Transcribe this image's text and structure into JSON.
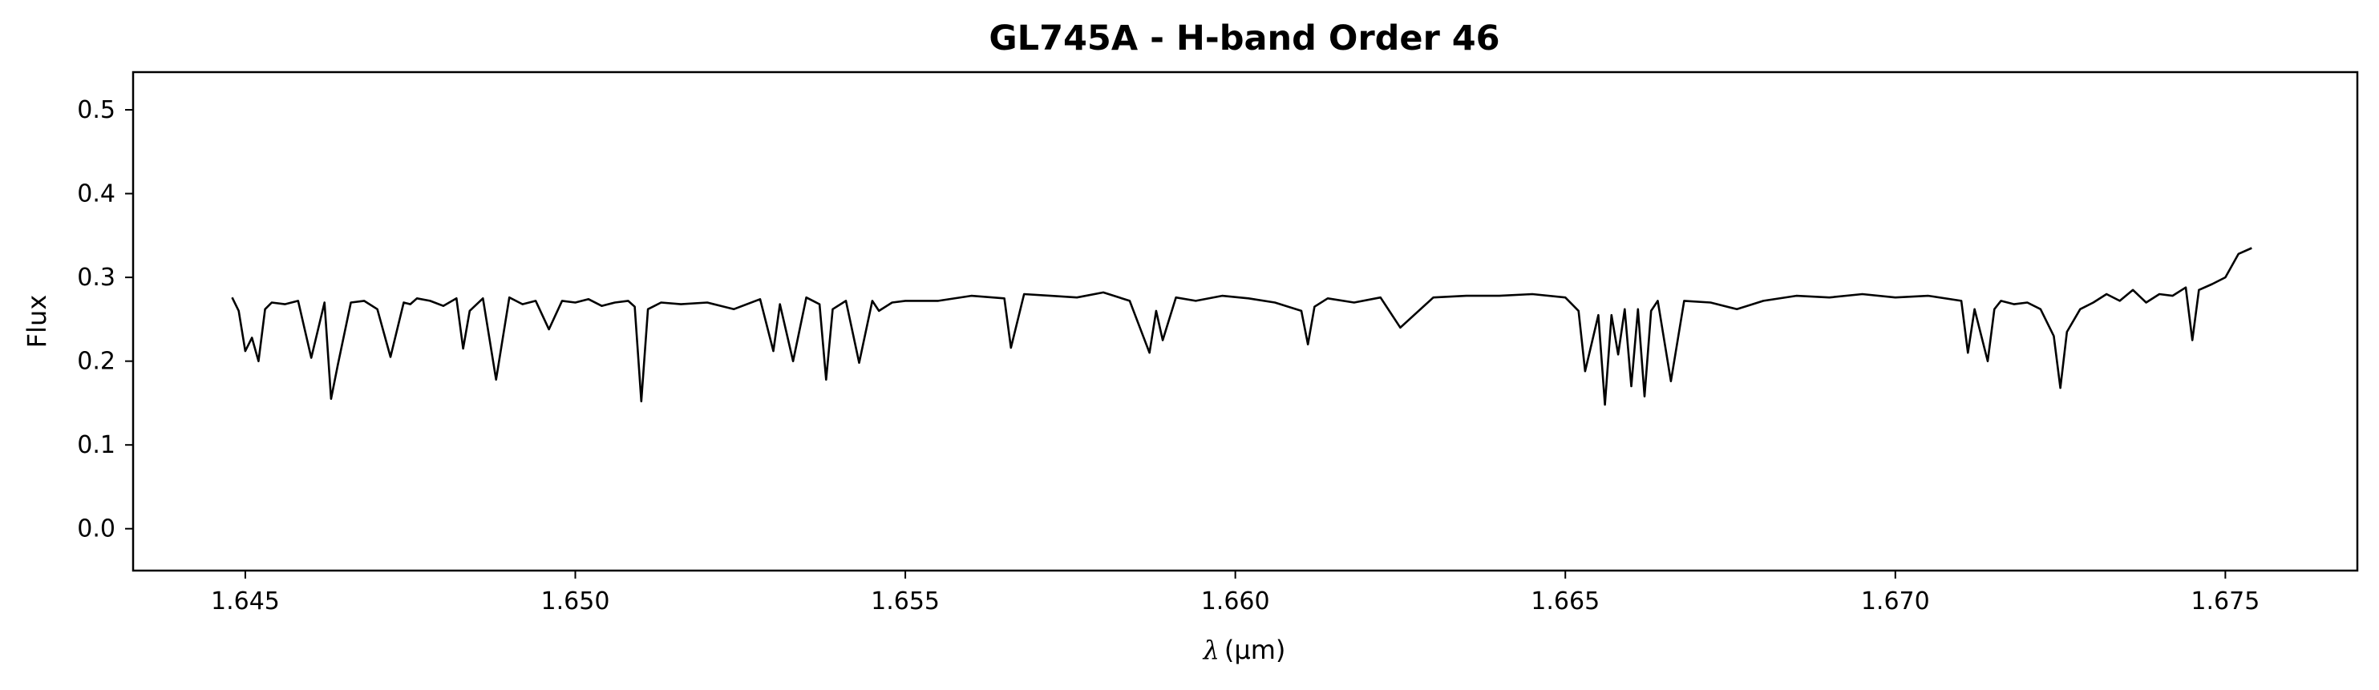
{
  "chart_data": {
    "type": "line",
    "title": "GL745A - H-band Order 46",
    "xlabel_symbol": "λ",
    "xlabel_unit": "(μm)",
    "ylabel": "Flux",
    "xlim": [
      1.6433,
      1.677
    ],
    "ylim": [
      -0.05,
      0.545
    ],
    "xticks": [
      1.645,
      1.65,
      1.655,
      1.66,
      1.665,
      1.67,
      1.675
    ],
    "xtick_labels": [
      "1.645",
      "1.650",
      "1.655",
      "1.660",
      "1.665",
      "1.670",
      "1.675"
    ],
    "yticks": [
      0.0,
      0.1,
      0.2,
      0.3,
      0.4,
      0.5
    ],
    "ytick_labels": [
      "0.0",
      "0.1",
      "0.2",
      "0.3",
      "0.4",
      "0.5"
    ],
    "grid": false,
    "line_color": "#000000",
    "series": [
      {
        "x": [
          1.6448,
          1.6449,
          1.645,
          1.6451,
          1.6452,
          1.6453,
          1.6454,
          1.6456,
          1.6458,
          1.646,
          1.6462,
          1.6463,
          1.6464,
          1.6466,
          1.6468,
          1.647,
          1.6472,
          1.6474,
          1.6475,
          1.6476,
          1.6478,
          1.648,
          1.6482,
          1.6483,
          1.6484,
          1.6486,
          1.6488,
          1.649,
          1.6492,
          1.6494,
          1.6496,
          1.6498,
          1.65,
          1.6502,
          1.6504,
          1.6506,
          1.6508,
          1.6509,
          1.651,
          1.6511,
          1.6513,
          1.6516,
          1.652,
          1.6524,
          1.6528,
          1.653,
          1.6531,
          1.6533,
          1.6535,
          1.6537,
          1.6538,
          1.6539,
          1.6541,
          1.6543,
          1.6545,
          1.6546,
          1.6548,
          1.655,
          1.6555,
          1.656,
          1.6565,
          1.6566,
          1.6568,
          1.6572,
          1.6576,
          1.658,
          1.6584,
          1.6587,
          1.6588,
          1.6589,
          1.6591,
          1.6594,
          1.6598,
          1.6602,
          1.6606,
          1.661,
          1.6611,
          1.6612,
          1.6614,
          1.6618,
          1.6622,
          1.6625,
          1.663,
          1.6635,
          1.664,
          1.6645,
          1.665,
          1.6652,
          1.6653,
          1.6655,
          1.6656,
          1.6657,
          1.6658,
          1.6659,
          1.666,
          1.6661,
          1.6662,
          1.6663,
          1.6664,
          1.6666,
          1.6668,
          1.6672,
          1.6676,
          1.668,
          1.6685,
          1.669,
          1.6695,
          1.67,
          1.6705,
          1.671,
          1.6711,
          1.6712,
          1.6714,
          1.6715,
          1.6716,
          1.6718,
          1.672,
          1.6722,
          1.6724,
          1.6725,
          1.6726,
          1.6728,
          1.673,
          1.6732,
          1.6734,
          1.6736,
          1.6738,
          1.674,
          1.6742,
          1.6744,
          1.6745,
          1.6746,
          1.6748,
          1.675,
          1.6752,
          1.6754
        ],
        "y": [
          0.276,
          0.26,
          0.212,
          0.228,
          0.2,
          0.262,
          0.27,
          0.268,
          0.272,
          0.204,
          0.27,
          0.155,
          0.195,
          0.27,
          0.272,
          0.262,
          0.205,
          0.27,
          0.268,
          0.275,
          0.272,
          0.266,
          0.275,
          0.215,
          0.26,
          0.275,
          0.178,
          0.276,
          0.268,
          0.272,
          0.238,
          0.272,
          0.27,
          0.274,
          0.266,
          0.27,
          0.272,
          0.265,
          0.152,
          0.262,
          0.27,
          0.268,
          0.27,
          0.262,
          0.274,
          0.212,
          0.268,
          0.2,
          0.276,
          0.268,
          0.178,
          0.262,
          0.272,
          0.198,
          0.272,
          0.26,
          0.27,
          0.272,
          0.272,
          0.278,
          0.275,
          0.216,
          0.28,
          0.278,
          0.276,
          0.282,
          0.272,
          0.21,
          0.26,
          0.225,
          0.276,
          0.272,
          0.278,
          0.275,
          0.27,
          0.26,
          0.22,
          0.265,
          0.275,
          0.27,
          0.276,
          0.24,
          0.276,
          0.278,
          0.278,
          0.28,
          0.276,
          0.26,
          0.188,
          0.255,
          0.148,
          0.255,
          0.208,
          0.262,
          0.17,
          0.262,
          0.158,
          0.26,
          0.272,
          0.176,
          0.272,
          0.27,
          0.262,
          0.272,
          0.278,
          0.276,
          0.28,
          0.276,
          0.278,
          0.272,
          0.21,
          0.262,
          0.2,
          0.262,
          0.272,
          0.268,
          0.27,
          0.262,
          0.23,
          0.168,
          0.235,
          0.262,
          0.27,
          0.28,
          0.272,
          0.285,
          0.27,
          0.28,
          0.278,
          0.288,
          0.225,
          0.285,
          0.292,
          0.3,
          0.328,
          0.335
        ]
      }
    ]
  }
}
